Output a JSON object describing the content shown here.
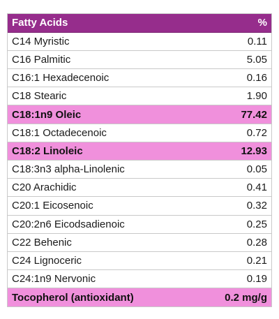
{
  "header": {
    "name": "Fatty Acids",
    "value": "%"
  },
  "rows": [
    {
      "name": "C14 Myristic",
      "value": "0.11",
      "highlight": false
    },
    {
      "name": "C16 Palmitic",
      "value": "5.05",
      "highlight": false
    },
    {
      "name": "C16:1 Hexadecenoic",
      "value": "0.16",
      "highlight": false
    },
    {
      "name": "C18 Stearic",
      "value": "1.90",
      "highlight": false
    },
    {
      "name": "C18:1n9 Oleic",
      "value": "77.42",
      "highlight": true
    },
    {
      "name": "C18:1 Octadecenoic",
      "value": "0.72",
      "highlight": false
    },
    {
      "name": "C18:2 Linoleic",
      "value": "12.93",
      "highlight": true
    },
    {
      "name": "C18:3n3 alpha-Linolenic",
      "value": "0.05",
      "highlight": false
    },
    {
      "name": "C20 Arachidic",
      "value": "0.41",
      "highlight": false
    },
    {
      "name": "C20:1 Eicosenoic",
      "value": "0.32",
      "highlight": false
    },
    {
      "name": "C20:2n6 Eicodsadienoic",
      "value": "0.25",
      "highlight": false
    },
    {
      "name": "C22 Behenic",
      "value": "0.28",
      "highlight": false
    },
    {
      "name": "C24 Lignoceric",
      "value": "0.21",
      "highlight": false
    },
    {
      "name": "C24:1n9 Nervonic",
      "value": "0.19",
      "highlight": false
    }
  ],
  "footer": {
    "name": "Tocopherol (antioxidant)",
    "value": "0.2 mg/g"
  },
  "colors": {
    "header_bg": "#962d8c",
    "highlight_bg": "#f090dc",
    "border": "#c9c9c9"
  }
}
